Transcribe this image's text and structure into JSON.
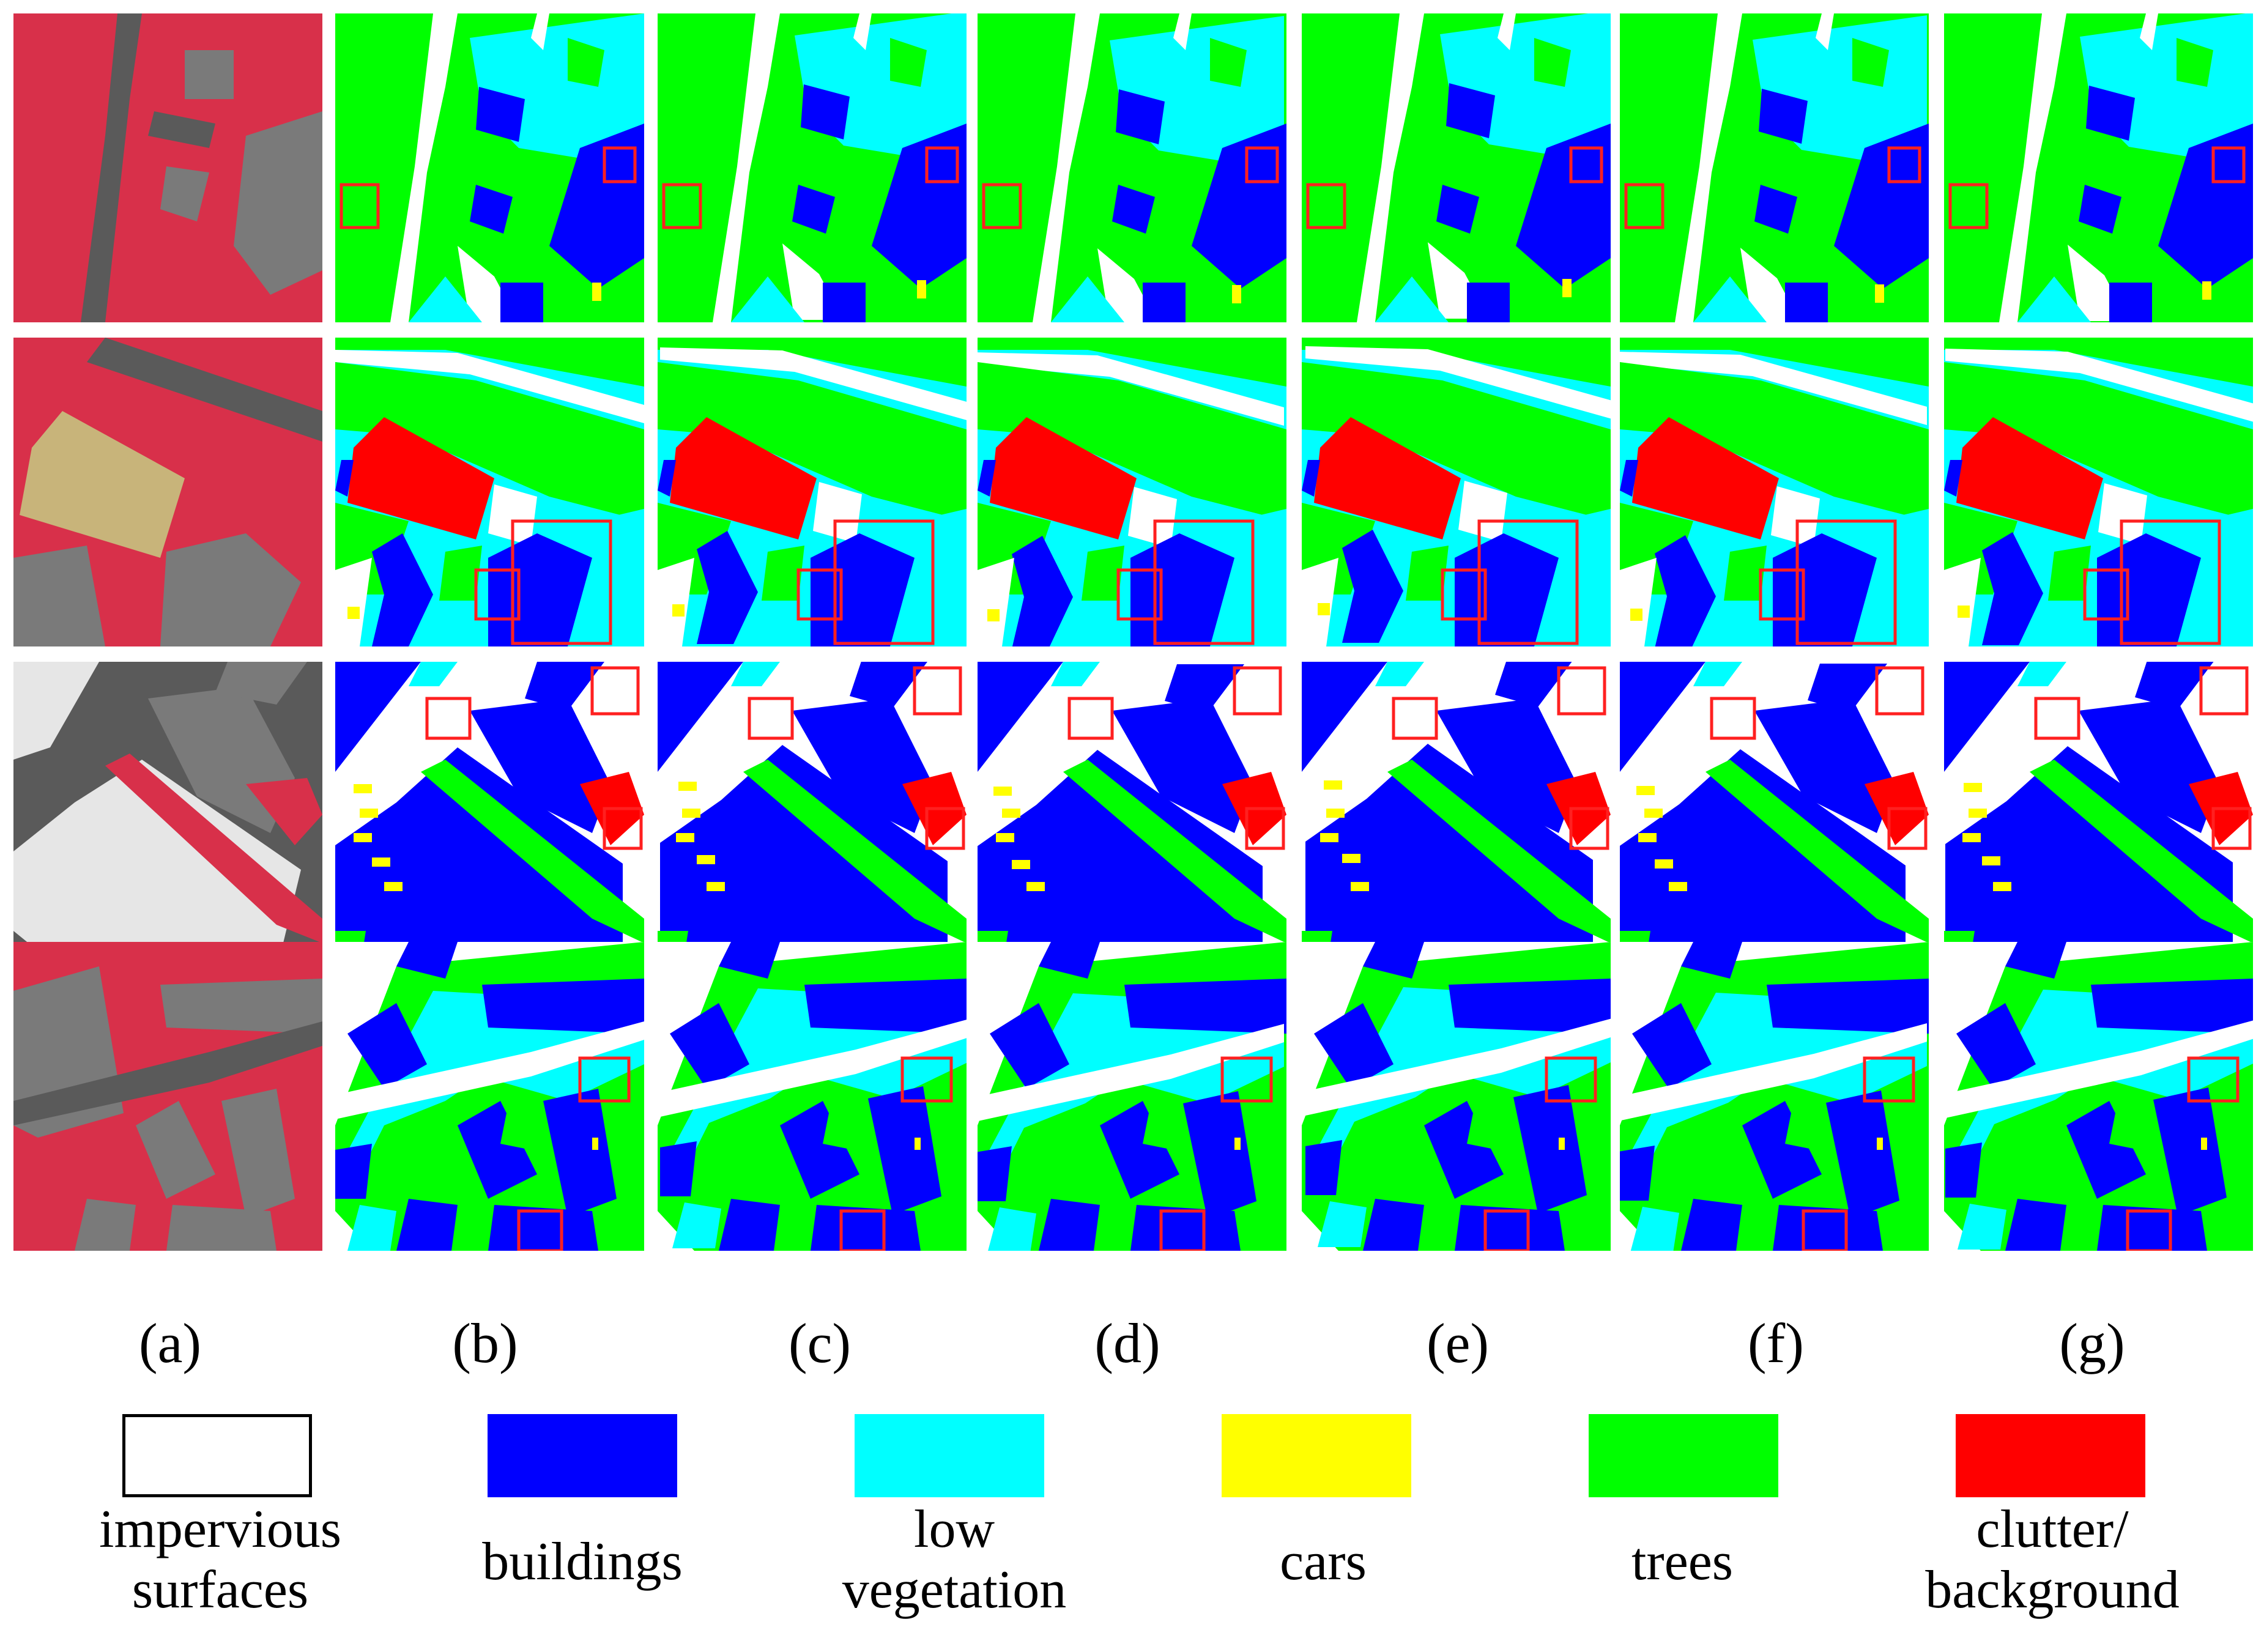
{
  "figure": {
    "rows": 4,
    "columns": [
      {
        "label": "(a)",
        "kind": "IRRG aerial image"
      },
      {
        "label": "(b)",
        "kind": "segmentation map"
      },
      {
        "label": "(c)",
        "kind": "segmentation map"
      },
      {
        "label": "(d)",
        "kind": "segmentation map"
      },
      {
        "label": "(e)",
        "kind": "segmentation map"
      },
      {
        "label": "(f)",
        "kind": "segmentation map"
      },
      {
        "label": "(g)",
        "kind": "segmentation map"
      }
    ]
  },
  "legend": [
    {
      "label": "impervious\nsurfaces",
      "color": "#ffffff"
    },
    {
      "label": "buildings",
      "color": "#0000ff"
    },
    {
      "label": "low\nvegetation",
      "color": "#00ffff"
    },
    {
      "label": "cars",
      "color": "#ffff00"
    },
    {
      "label": "trees",
      "color": "#00ff00"
    },
    {
      "label": "clutter/\nbackground",
      "color": "#ff0000"
    }
  ],
  "colors": {
    "highlight_box": "#ff2020",
    "aerial_vegetation": "#d8304a",
    "aerial_roof": "#7a7a7a",
    "aerial_road": "#5a5a5a",
    "aerial_white_roof": "#e6e6e6",
    "aerial_court": "#c8b47a"
  }
}
